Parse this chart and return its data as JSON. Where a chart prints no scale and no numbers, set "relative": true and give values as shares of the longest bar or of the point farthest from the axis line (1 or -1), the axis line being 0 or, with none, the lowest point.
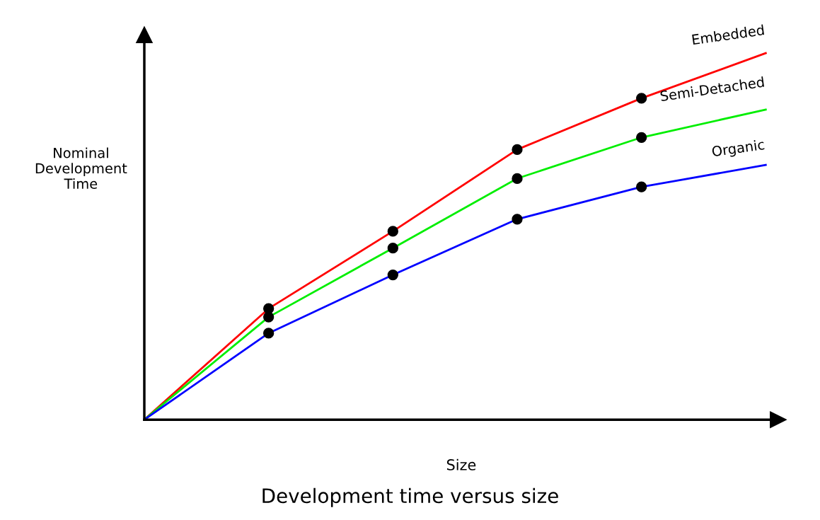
{
  "chart_data": {
    "type": "line",
    "relative": true,
    "title": "Development time versus size",
    "xlabel": "Size",
    "ylabel": "Nominal\nDevelopment\nTime",
    "categories": [
      null,
      null,
      null,
      null,
      null,
      null
    ],
    "grid": false,
    "legend": false,
    "marker": "circle",
    "line_style": "solid",
    "tick_labels": false,
    "series": [
      {
        "name": "Embedded",
        "color": "#ff0000",
        "values": [
          0,
          0.303,
          0.514,
          0.737,
          0.877,
          1.0
        ]
      },
      {
        "name": "Semi-Detached",
        "color": "#00ee00",
        "values": [
          0,
          0.28,
          0.468,
          0.658,
          0.77,
          0.846
        ]
      },
      {
        "name": "Organic",
        "color": "#0000ff",
        "values": [
          0,
          0.236,
          0.395,
          0.547,
          0.635,
          0.695
        ]
      }
    ]
  }
}
